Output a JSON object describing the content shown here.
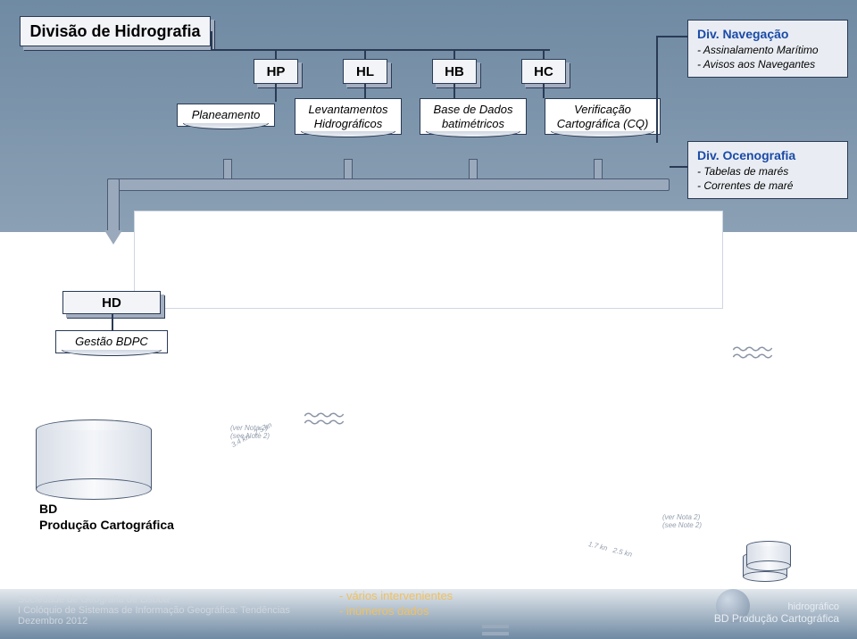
{
  "title_box": "Divisão de Hidrografia",
  "top_boxes": [
    "HP",
    "HL",
    "HB",
    "HC"
  ],
  "fold_boxes": [
    "Planeamento",
    "Levantamentos\nHidrográficos",
    "Base de Dados\nbatimétricos",
    "Verificação\nCartográfica (CQ)"
  ],
  "side": {
    "nav": {
      "title": "Div. Navegação",
      "lines": [
        "- Assinalamento Marítimo",
        "- Avisos aos Navegantes"
      ]
    },
    "oce": {
      "title": "Div. Ocenografia",
      "lines": [
        "- Tabelas de marés",
        "- Correntes de maré"
      ]
    }
  },
  "hd_box": "HD",
  "hd_fold": "Gestão  BDPC",
  "cyl_label": "BD\nProdução Cartográfica",
  "footer": {
    "org": "Sociedade de Geografia de Lisboa",
    "event": "I Colóquio de Sistemas de Informação Geográfica: Tendências",
    "date": "Dezembro 2012",
    "mid": [
      "- vários intervenientes",
      "- inúmeros dados"
    ],
    "right_text": "BD Produção Cartográfica",
    "right_brand": "hidrográfico"
  },
  "annot": {
    "a1": "(ver Nota 2)\n(see Note 2)",
    "a2": "(ver Nota 2)\n(see Note 2)"
  },
  "colors": {
    "bg_top": "#7b93aa",
    "box_fill": "#f2f4f8",
    "box_border": "#2a3a55",
    "accent": "#1a4aa8",
    "bus": "#9aa9bc"
  }
}
